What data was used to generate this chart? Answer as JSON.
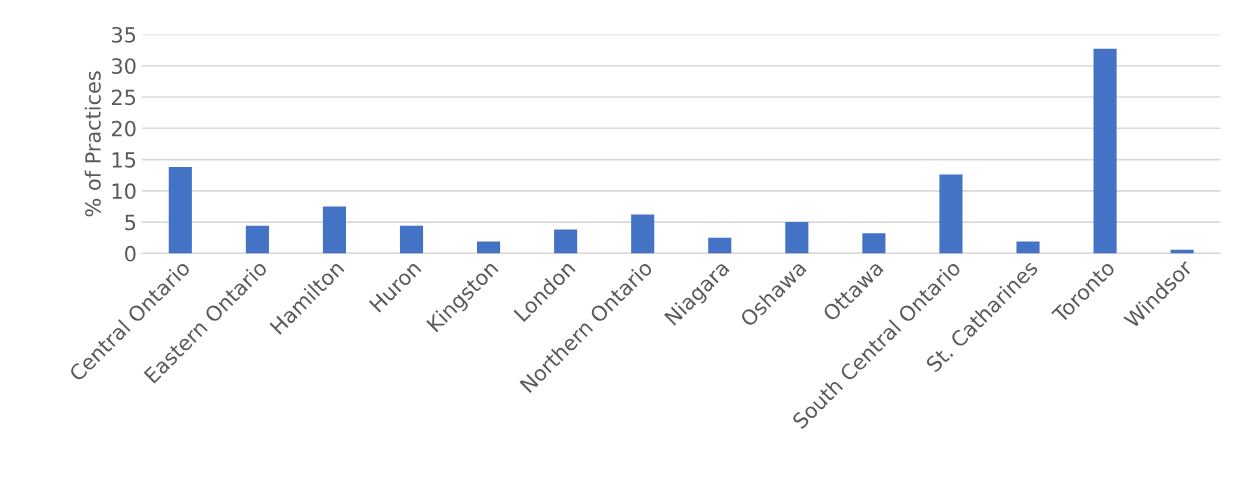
{
  "chart_data": {
    "type": "bar",
    "ylabel": "% of Practices",
    "categories": [
      "Central Ontario",
      "Eastern Ontario",
      "Hamilton",
      "Huron",
      "Kingston",
      "London",
      "Northern Ontario",
      "Niagara",
      "Oshawa",
      "Ottawa",
      "South Central Ontario",
      "St. Catharines",
      "Toronto",
      "Windsor"
    ],
    "values": [
      13.8,
      4.4,
      7.5,
      4.4,
      1.9,
      3.8,
      6.2,
      2.5,
      5.0,
      3.2,
      12.6,
      1.9,
      32.7,
      0.6
    ],
    "color": "#4472c4",
    "ylim": [
      0,
      35
    ],
    "yticks": [
      0,
      5,
      10,
      15,
      20,
      25,
      30,
      35
    ],
    "grid": "y"
  }
}
